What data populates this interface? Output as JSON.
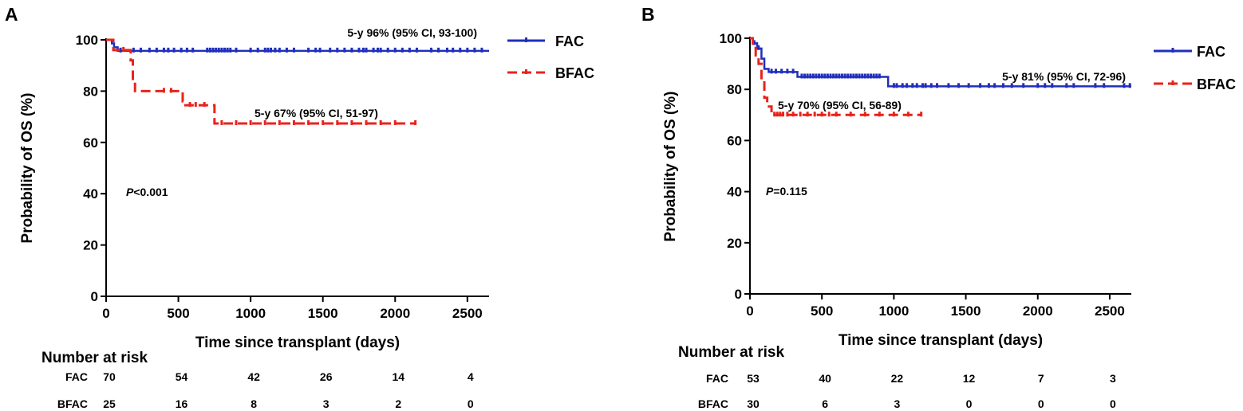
{
  "chart_data": [
    {
      "type": "line",
      "panel_label": "A",
      "xlabel": "Time since transplant (days)",
      "ylabel": "Probability of OS (%)",
      "xlim": [
        0,
        2650
      ],
      "ylim": [
        0,
        100
      ],
      "x_ticks": [
        0,
        500,
        1000,
        1500,
        2000,
        2500
      ],
      "y_ticks": [
        0,
        20,
        40,
        60,
        80,
        100
      ],
      "grid": false,
      "legend_position": "right",
      "p_value": {
        "symbol": "P",
        "text": "<0.001"
      },
      "series": [
        {
          "name": "FAC",
          "color": "#1f2ebd",
          "dash": "solid",
          "steps": [
            [
              0,
              100
            ],
            [
              40,
              98.6
            ],
            [
              55,
              97.1
            ],
            [
              80,
              95.7
            ],
            [
              2650,
              95.7
            ]
          ],
          "censors": [
            100,
            190,
            240,
            300,
            350,
            400,
            430,
            470,
            520,
            560,
            600,
            700,
            720,
            740,
            760,
            780,
            800,
            820,
            840,
            860,
            900,
            1000,
            1050,
            1100,
            1120,
            1140,
            1170,
            1200,
            1250,
            1300,
            1400,
            1450,
            1480,
            1550,
            1600,
            1650,
            1700,
            1750,
            1780,
            1800,
            1850,
            1880,
            1900,
            1950,
            2000,
            2050,
            2100,
            2150,
            2250,
            2300,
            2360,
            2400,
            2450,
            2500,
            2550,
            2600
          ],
          "annotation": "5-y 96% (95% CI, 93-100)"
        },
        {
          "name": "BFAC",
          "color": "#e8231c",
          "dash": "dashed",
          "steps": [
            [
              0,
              100
            ],
            [
              50,
              96
            ],
            [
              170,
              92
            ],
            [
              185,
              84
            ],
            [
              200,
              80
            ],
            [
              530,
              76
            ],
            [
              540,
              74.5
            ],
            [
              750,
              67.4
            ],
            [
              2140,
              67.4
            ]
          ],
          "censors": [
            120,
            400,
            450,
            580,
            620,
            680,
            800,
            900,
            1000,
            1100,
            1200,
            1300,
            1400,
            1500,
            1600,
            1700,
            1800,
            1900,
            2000,
            2140
          ],
          "annotation": "5-y 67% (95% CI, 51-97)"
        }
      ],
      "risk_table": {
        "title": "Number at risk",
        "times": [
          0,
          500,
          1000,
          1500,
          2000,
          2500
        ],
        "rows": [
          {
            "label": "FAC",
            "values": [
              "70",
              "54",
              "42",
              "26",
              "14",
              "4"
            ]
          },
          {
            "label": "BFAC",
            "values": [
              "25",
              "16",
              "8",
              "3",
              "2",
              "0"
            ]
          }
        ]
      }
    },
    {
      "type": "line",
      "panel_label": "B",
      "xlabel": "Time since transplant (days)",
      "ylabel": "Probability of OS (%)",
      "xlim": [
        0,
        2650
      ],
      "ylim": [
        0,
        100
      ],
      "x_ticks": [
        0,
        500,
        1000,
        1500,
        2000,
        2500
      ],
      "y_ticks": [
        0,
        20,
        40,
        60,
        80,
        100
      ],
      "grid": false,
      "legend_position": "right",
      "p_value": {
        "symbol": "P",
        "text": "=0.115"
      },
      "series": [
        {
          "name": "FAC",
          "color": "#1f2ebd",
          "dash": "solid",
          "steps": [
            [
              0,
              100
            ],
            [
              20,
              98
            ],
            [
              50,
              96
            ],
            [
              80,
              92
            ],
            [
              100,
              88
            ],
            [
              130,
              86.8
            ],
            [
              330,
              84.9
            ],
            [
              960,
              81.2
            ],
            [
              2650,
              81.2
            ]
          ],
          "censors": [
            30,
            60,
            150,
            180,
            220,
            260,
            300,
            360,
            380,
            400,
            420,
            440,
            460,
            480,
            500,
            520,
            540,
            560,
            580,
            600,
            620,
            640,
            660,
            680,
            700,
            720,
            740,
            760,
            780,
            800,
            820,
            840,
            860,
            880,
            900,
            1000,
            1020,
            1060,
            1090,
            1130,
            1160,
            1200,
            1220,
            1260,
            1300,
            1380,
            1450,
            1520,
            1600,
            1660,
            1700,
            1760,
            1820,
            1900,
            2000,
            2050,
            2100,
            2200,
            2250,
            2400,
            2460,
            2600,
            2640
          ],
          "annotation": "5-y 81% (95% CI, 72-96)"
        },
        {
          "name": "BFAC",
          "color": "#e8231c",
          "dash": "dashed",
          "steps": [
            [
              0,
              100
            ],
            [
              20,
              96.7
            ],
            [
              40,
              93.3
            ],
            [
              60,
              90
            ],
            [
              80,
              83.3
            ],
            [
              100,
              76.7
            ],
            [
              120,
              73.3
            ],
            [
              150,
              70
            ],
            [
              1190,
              70
            ]
          ],
          "censors": [
            170,
            190,
            210,
            230,
            260,
            300,
            350,
            400,
            450,
            500,
            550,
            600,
            700,
            800,
            900,
            1000,
            1100,
            1190
          ],
          "annotation": "5-y 70% (95% CI, 56-89)"
        }
      ],
      "risk_table": {
        "title": "Number at risk",
        "times": [
          0,
          500,
          1000,
          1500,
          2000,
          2500
        ],
        "rows": [
          {
            "label": "FAC",
            "values": [
              "53",
              "40",
              "22",
              "12",
              "7",
              "3"
            ]
          },
          {
            "label": "BFAC",
            "values": [
              "30",
              "6",
              "3",
              "0",
              "0",
              "0"
            ]
          }
        ]
      }
    }
  ]
}
